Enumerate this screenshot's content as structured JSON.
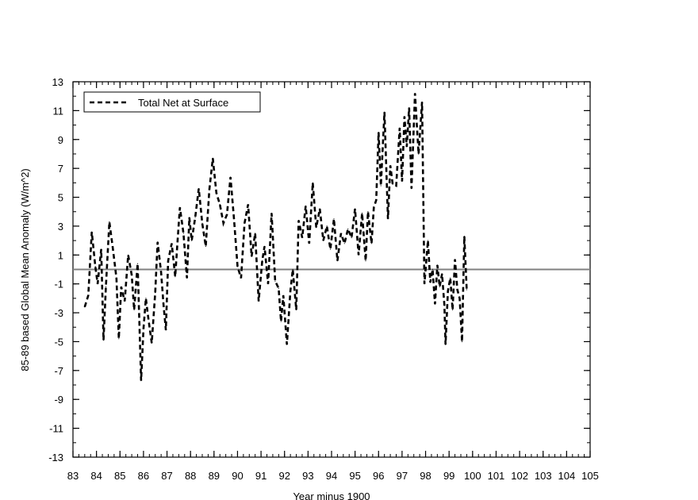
{
  "chart_data": {
    "type": "line",
    "title": "",
    "xlabel": "Year minus 1900",
    "ylabel": "85-89 based Global Mean Anomaly  (W/m^2)",
    "xlim": [
      83,
      105
    ],
    "ylim": [
      -13,
      13
    ],
    "xticks": [
      83,
      84,
      85,
      86,
      87,
      88,
      89,
      90,
      91,
      92,
      93,
      94,
      95,
      96,
      97,
      98,
      99,
      100,
      101,
      102,
      103,
      104,
      105
    ],
    "xtick_labels": [
      "83",
      "84",
      "85",
      "86",
      "87",
      "88",
      "89",
      "90",
      "91",
      "92",
      "93",
      "94",
      "95",
      "96",
      "97",
      "98",
      "99",
      "100",
      "101",
      "102",
      "103",
      "104",
      "105"
    ],
    "yticks": [
      -13,
      -11,
      -9,
      -7,
      -5,
      -3,
      -1,
      1,
      3,
      5,
      7,
      9,
      11,
      13
    ],
    "ytick_labels": [
      "-13",
      "-11",
      "-9",
      "-7",
      "-5",
      "-3",
      "-1",
      "1",
      "3",
      "5",
      "7",
      "9",
      "11",
      "13"
    ],
    "reference_line_y": 0,
    "grid": false,
    "legend": {
      "position": "top-left",
      "entries": [
        "Total Net at Surface"
      ]
    },
    "series": [
      {
        "name": "Total Net at Surface",
        "style": "dashed",
        "color": "#000000",
        "points": [
          [
            83.5,
            -2.6
          ],
          [
            83.65,
            -1.8
          ],
          [
            83.8,
            2.6
          ],
          [
            83.95,
            0.2
          ],
          [
            84.05,
            -1.0
          ],
          [
            84.2,
            1.4
          ],
          [
            84.3,
            -4.9
          ],
          [
            84.4,
            -1.2
          ],
          [
            84.55,
            3.3
          ],
          [
            84.7,
            1.4
          ],
          [
            84.85,
            -0.6
          ],
          [
            84.95,
            -4.8
          ],
          [
            85.05,
            -1.2
          ],
          [
            85.2,
            -2.2
          ],
          [
            85.35,
            1.0
          ],
          [
            85.5,
            -0.4
          ],
          [
            85.6,
            -2.8
          ],
          [
            85.75,
            0.4
          ],
          [
            85.9,
            -7.7
          ],
          [
            86.0,
            -4.1
          ],
          [
            86.1,
            -2.0
          ],
          [
            86.2,
            -3.3
          ],
          [
            86.35,
            -5.1
          ],
          [
            86.5,
            -1.6
          ],
          [
            86.6,
            1.9
          ],
          [
            86.75,
            -0.2
          ],
          [
            86.85,
            -2.4
          ],
          [
            86.95,
            -4.2
          ],
          [
            87.05,
            0.6
          ],
          [
            87.2,
            1.8
          ],
          [
            87.35,
            -0.5
          ],
          [
            87.45,
            2.0
          ],
          [
            87.55,
            4.3
          ],
          [
            87.7,
            2.5
          ],
          [
            87.85,
            -0.6
          ],
          [
            87.95,
            3.6
          ],
          [
            88.05,
            2.0
          ],
          [
            88.2,
            3.6
          ],
          [
            88.35,
            5.6
          ],
          [
            88.5,
            3.2
          ],
          [
            88.65,
            1.6
          ],
          [
            88.8,
            5.5
          ],
          [
            88.95,
            7.7
          ],
          [
            89.1,
            5.3
          ],
          [
            89.25,
            4.5
          ],
          [
            89.4,
            3.2
          ],
          [
            89.55,
            3.8
          ],
          [
            89.7,
            6.4
          ],
          [
            89.85,
            3.5
          ],
          [
            90.0,
            0.2
          ],
          [
            90.15,
            -0.6
          ],
          [
            90.3,
            3.2
          ],
          [
            90.45,
            4.5
          ],
          [
            90.6,
            0.9
          ],
          [
            90.75,
            2.5
          ],
          [
            90.9,
            -2.2
          ],
          [
            91.05,
            0.6
          ],
          [
            91.15,
            1.6
          ],
          [
            91.3,
            -1.0
          ],
          [
            91.45,
            3.9
          ],
          [
            91.6,
            -0.8
          ],
          [
            91.75,
            -1.3
          ],
          [
            91.85,
            -3.6
          ],
          [
            91.95,
            -1.8
          ],
          [
            92.1,
            -5.2
          ],
          [
            92.25,
            -1.5
          ],
          [
            92.35,
            0.0
          ],
          [
            92.5,
            -2.8
          ],
          [
            92.6,
            3.4
          ],
          [
            92.75,
            2.2
          ],
          [
            92.9,
            4.4
          ],
          [
            93.05,
            1.8
          ],
          [
            93.2,
            6.0
          ],
          [
            93.35,
            2.9
          ],
          [
            93.5,
            4.2
          ],
          [
            93.65,
            2.0
          ],
          [
            93.8,
            3.0
          ],
          [
            93.95,
            1.4
          ],
          [
            94.1,
            3.5
          ],
          [
            94.25,
            0.6
          ],
          [
            94.4,
            2.5
          ],
          [
            94.55,
            1.8
          ],
          [
            94.7,
            2.8
          ],
          [
            94.85,
            2.2
          ],
          [
            95.0,
            4.2
          ],
          [
            95.15,
            1.0
          ],
          [
            95.3,
            3.9
          ],
          [
            95.45,
            0.6
          ],
          [
            95.55,
            4.0
          ],
          [
            95.7,
            1.8
          ],
          [
            95.8,
            4.3
          ],
          [
            95.9,
            4.8
          ],
          [
            96.0,
            9.5
          ],
          [
            96.1,
            5.8
          ],
          [
            96.25,
            10.9
          ],
          [
            96.4,
            3.5
          ],
          [
            96.5,
            7.2
          ],
          [
            96.6,
            5.9
          ],
          [
            96.75,
            5.8
          ],
          [
            96.9,
            9.8
          ],
          [
            97.0,
            6.1
          ],
          [
            97.1,
            10.6
          ],
          [
            97.2,
            8.5
          ],
          [
            97.3,
            11.2
          ],
          [
            97.4,
            5.6
          ],
          [
            97.55,
            12.2
          ],
          [
            97.7,
            8.0
          ],
          [
            97.85,
            11.6
          ],
          [
            97.95,
            -1.0
          ],
          [
            98.1,
            2.0
          ],
          [
            98.2,
            -0.9
          ],
          [
            98.3,
            0.0
          ],
          [
            98.4,
            -2.4
          ],
          [
            98.5,
            0.3
          ],
          [
            98.6,
            -1.2
          ],
          [
            98.7,
            -0.3
          ],
          [
            98.8,
            -2.5
          ],
          [
            98.85,
            -5.2
          ],
          [
            98.95,
            -1.5
          ],
          [
            99.05,
            -0.6
          ],
          [
            99.15,
            -2.8
          ],
          [
            99.25,
            0.7
          ],
          [
            99.35,
            -1.4
          ],
          [
            99.45,
            -2.0
          ],
          [
            99.55,
            -5.0
          ],
          [
            99.65,
            2.3
          ],
          [
            99.75,
            -1.4
          ]
        ]
      }
    ]
  }
}
